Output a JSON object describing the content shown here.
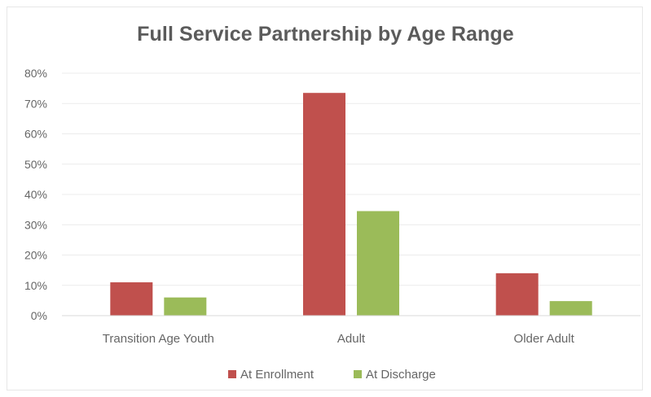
{
  "chart_data": {
    "type": "bar",
    "title": "Full Service Partnership by Age Range",
    "xlabel": "",
    "ylabel": "",
    "categories": [
      "Transition Age Youth",
      "Adult",
      "Older Adult"
    ],
    "series": [
      {
        "name": "At Enrollment",
        "values": [
          11,
          73.5,
          14
        ],
        "color": "#c0504d"
      },
      {
        "name": "At Discharge",
        "values": [
          6,
          34.5,
          4.8
        ],
        "color": "#9bbb59"
      }
    ],
    "ylim": [
      0,
      80
    ],
    "yticks": [
      0,
      10,
      20,
      30,
      40,
      50,
      60,
      70,
      80
    ],
    "ytick_labels": [
      "0%",
      "10%",
      "20%",
      "30%",
      "40%",
      "50%",
      "60%",
      "70%",
      "80%"
    ],
    "grid": true,
    "legend_position": "bottom"
  }
}
